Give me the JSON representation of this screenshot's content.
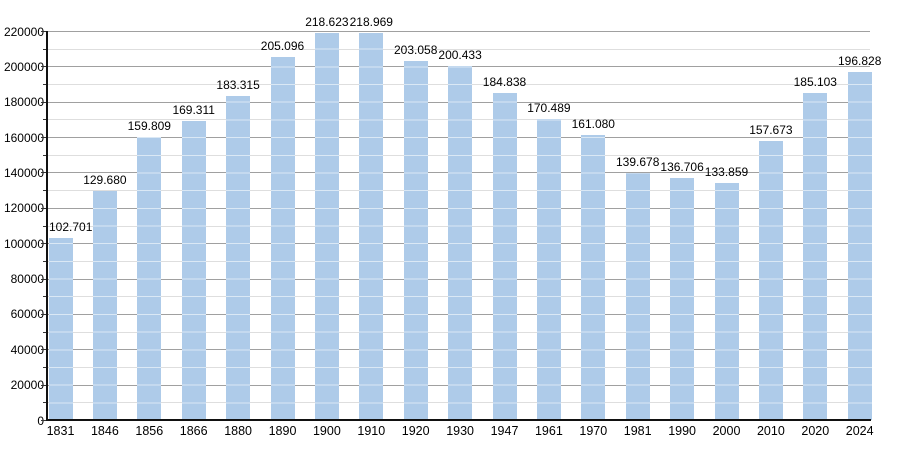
{
  "chart_data": {
    "type": "bar",
    "title": "",
    "xlabel": "",
    "ylabel": "",
    "categories": [
      "1831",
      "1846",
      "1856",
      "1866",
      "1880",
      "1890",
      "1900",
      "1910",
      "1920",
      "1930",
      "1947",
      "1961",
      "1970",
      "1981",
      "1990",
      "2000",
      "2010",
      "2020",
      "2024"
    ],
    "values": [
      102701,
      129680,
      159809,
      169311,
      183315,
      205096,
      218623,
      218969,
      203058,
      200433,
      184838,
      170489,
      161080,
      139678,
      136706,
      133859,
      157673,
      185103,
      196828
    ],
    "value_labels": [
      "102.701",
      "129.680",
      "159.809",
      "169.311",
      "183.315",
      "205.096",
      "218.623",
      "218.969",
      "203.058",
      "200.433",
      "184.838",
      "170.489",
      "161.080",
      "139.678",
      "136.706",
      "133.859",
      "157.673",
      "185.103",
      "196.828"
    ],
    "ylim": [
      0,
      220000
    ],
    "y_major_step": 20000,
    "y_minor_step": 10000,
    "y_tick_labels": [
      "0",
      "20000",
      "40000",
      "60000",
      "80000",
      "100000",
      "120000",
      "140000",
      "160000",
      "180000",
      "200000",
      "220000"
    ],
    "grid": "on",
    "legend_position": "none",
    "colors": {
      "bar_fill": "#aecbe9",
      "bar_stripe_overlay": "rgba(255,255,255,0.55)",
      "major_gridline": "#a0a0a0",
      "minor_gridline": "#dedede",
      "axis": "#111111",
      "tick": "#333333",
      "text": "#000000"
    }
  }
}
